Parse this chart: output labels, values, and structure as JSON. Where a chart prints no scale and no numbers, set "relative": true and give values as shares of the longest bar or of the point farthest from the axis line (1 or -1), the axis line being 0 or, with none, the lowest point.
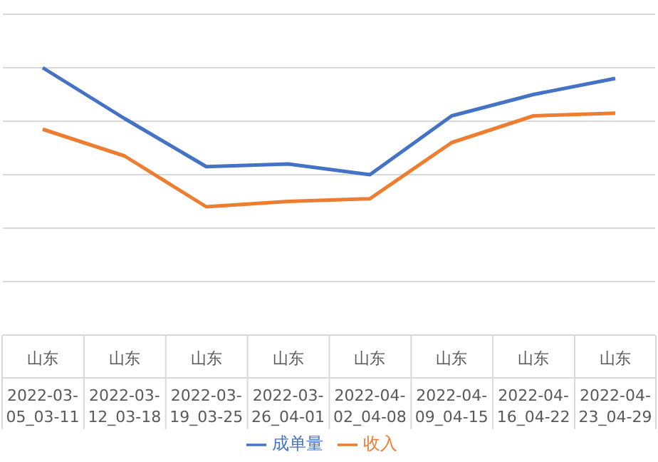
{
  "chart_data": {
    "type": "line",
    "relative": true,
    "categories": [
      "山东 2022-03-05_03-11",
      "山东 2022-03-12_03-18",
      "山东 2022-03-19_03-25",
      "山东 2022-03-26_04-01",
      "山东 2022-04-02_04-08",
      "山东 2022-04-09_04-15",
      "山东 2022-04-16_04-22",
      "山东 2022-04-23_04-29"
    ],
    "series": [
      {
        "name": "收入",
        "color": "#ed7d31",
        "values": [
          0.77,
          0.67,
          0.48,
          0.5,
          0.51,
          0.72,
          0.82,
          0.83
        ]
      },
      {
        "name": "成单量",
        "color": "#4472c4",
        "values": [
          1,
          0.81,
          0.63,
          0.64,
          0.6,
          0.82,
          0.9,
          0.96
        ]
      }
    ],
    "grid": "y",
    "legend": "bottom",
    "marker": "none",
    "line_style": "solid"
  }
}
